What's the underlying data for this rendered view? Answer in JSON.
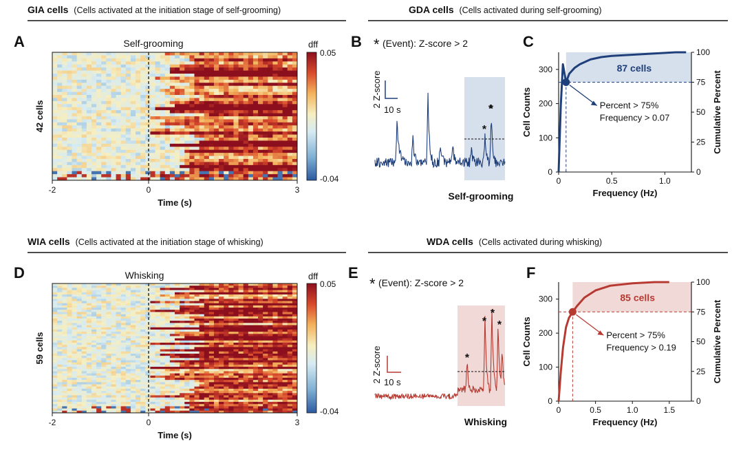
{
  "colors": {
    "groom": "#1f3f7a",
    "whisk": "#b63a32",
    "groom_shade": "#d6e0ec",
    "whisk_shade": "#f0d9d6",
    "cmap": [
      "#2c5aa0",
      "#7fb0d4",
      "#d7ebf2",
      "#f6eec0",
      "#f3b25c",
      "#d94a2c",
      "#8c0f1e"
    ]
  },
  "sections": {
    "gia": {
      "title": "GIA cells",
      "subtitle": "(Cells activated at the initiation stage of self-grooming)"
    },
    "gda": {
      "title": "GDA cells",
      "subtitle": "(Cells activated during self-grooming)"
    },
    "wia": {
      "title": "WIA cells",
      "subtitle": "(Cells activated at the initiation stage of whisking)"
    },
    "wda": {
      "title": "WDA cells",
      "subtitle": "(Cells activated during whisking)"
    }
  },
  "panels": {
    "A": {
      "letter": "A",
      "title": "Self-grooming",
      "ylabel": "42 cells",
      "xlabel": "Time (s)",
      "xticks": [
        "-2",
        "0",
        "3"
      ],
      "cbar_label": "dff",
      "cbar_max": "0.05",
      "cbar_min": "-0.04"
    },
    "B": {
      "letter": "B",
      "star": "*",
      "event_text": "(Event): Z-score > 2",
      "scale_y": "2 Z-score",
      "scale_x": "10 s",
      "label": "Self-grooming"
    },
    "C": {
      "letter": "C",
      "xlabel": "Frequency (Hz)",
      "ylabel": "Cell Counts",
      "y2label": "Cumulative Percent",
      "cells_label": "87 cells",
      "annot1": "Percent > 75%",
      "annot2": "Frequency > 0.07",
      "xticks": [
        "0",
        "0.5",
        "1.0"
      ],
      "yticks": [
        "0",
        "100",
        "200",
        "300"
      ],
      "y2ticks": [
        "0",
        "25",
        "50",
        "75",
        "100"
      ]
    },
    "D": {
      "letter": "D",
      "title": "Whisking",
      "ylabel": "59 cells",
      "xlabel": "Time (s)",
      "xticks": [
        "-2",
        "0",
        "3"
      ],
      "cbar_label": "dff",
      "cbar_max": "0.05",
      "cbar_min": "-0.04"
    },
    "E": {
      "letter": "E",
      "star": "*",
      "event_text": "(Event): Z-score > 2",
      "scale_y": "2 Z-score",
      "scale_x": "10 s",
      "label": "Whisking"
    },
    "F": {
      "letter": "F",
      "xlabel": "Frequency (Hz)",
      "ylabel": "Cell Counts",
      "y2label": "Cumulative Percent",
      "cells_label": "85 cells",
      "annot1": "Percent > 75%",
      "annot2": "Frequency > 0.19",
      "xticks": [
        "0",
        "0.5",
        "1.0",
        "1.5"
      ],
      "yticks": [
        "0",
        "100",
        "200",
        "300"
      ],
      "y2ticks": [
        "0",
        "25",
        "50",
        "75",
        "100"
      ]
    }
  },
  "chart_data": [
    {
      "type": "heatmap",
      "panel": "A",
      "title": "Self-grooming",
      "xlabel": "Time (s)",
      "ylabel": "42 cells",
      "xlim": [
        -2,
        3
      ],
      "rows": 42,
      "color_range": [
        -0.04,
        0.05
      ],
      "event_time": 0
    },
    {
      "type": "line",
      "panel": "B",
      "label": "Self-grooming",
      "threshold_z": 2,
      "peaks_at_event": 3,
      "note": "(Event): Z-score > 2"
    },
    {
      "type": "line",
      "panel": "C",
      "xlabel": "Frequency (Hz)",
      "ylabel": "Cell Counts",
      "y2label": "Cumulative Percent",
      "xlim": [
        0,
        1.25
      ],
      "ylim": [
        0,
        350
      ],
      "y2lim": [
        0,
        100
      ],
      "x": [
        0,
        0.02,
        0.04,
        0.07,
        0.1,
        0.15,
        0.2,
        0.3,
        0.4,
        0.5,
        0.7,
        0.9,
        1.1,
        1.2
      ],
      "values": [
        0,
        55,
        90,
        75,
        82,
        87,
        90,
        94,
        96,
        97,
        98,
        99,
        100,
        100
      ],
      "threshold": {
        "percent": 75,
        "frequency": 0.07
      },
      "cells_above": 87
    },
    {
      "type": "heatmap",
      "panel": "D",
      "title": "Whisking",
      "xlabel": "Time (s)",
      "ylabel": "59 cells",
      "xlim": [
        -2,
        3
      ],
      "rows": 59,
      "color_range": [
        -0.04,
        0.05
      ],
      "event_time": 0
    },
    {
      "type": "line",
      "panel": "E",
      "label": "Whisking",
      "threshold_z": 2,
      "peaks_at_event": 5,
      "note": "(Event): Z-score > 2"
    },
    {
      "type": "line",
      "panel": "F",
      "xlabel": "Frequency (Hz)",
      "ylabel": "Cell Counts",
      "y2label": "Cumulative Percent",
      "xlim": [
        0,
        1.8
      ],
      "ylim": [
        0,
        350
      ],
      "y2lim": [
        0,
        100
      ],
      "x": [
        0,
        0.03,
        0.06,
        0.1,
        0.14,
        0.19,
        0.25,
        0.35,
        0.5,
        0.7,
        1.0,
        1.3,
        1.5
      ],
      "values": [
        0,
        25,
        45,
        62,
        70,
        75,
        80,
        87,
        93,
        97,
        99,
        100,
        100
      ],
      "threshold": {
        "percent": 75,
        "frequency": 0.19
      },
      "cells_above": 85
    }
  ]
}
